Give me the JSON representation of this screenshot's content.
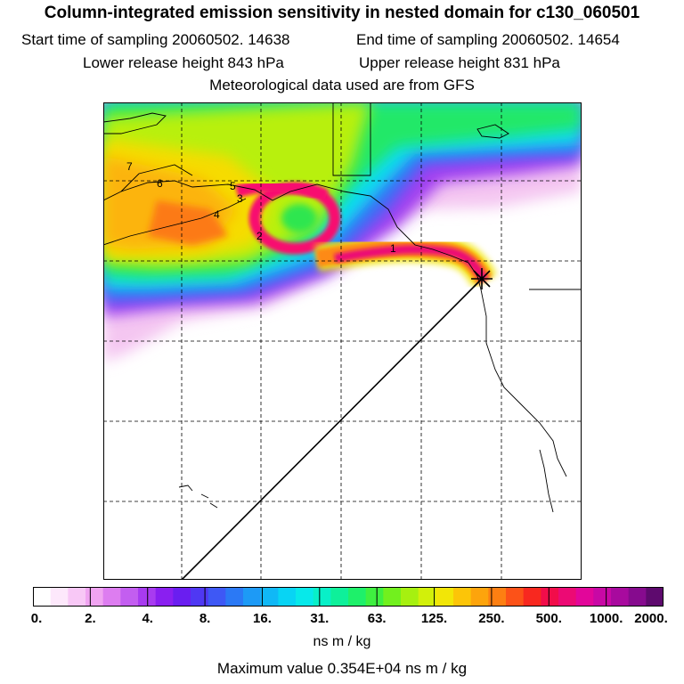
{
  "header": {
    "title": "Column-integrated emission sensitivity in nested domain for c130_060501",
    "start_time": "Start time of sampling 20060502. 14638",
    "end_time": "End time of sampling 20060502. 14654",
    "lower_height": "Lower release height  843 hPa",
    "upper_height": "Upper release height  831 hPa",
    "met_source": "Meteorological data used are from GFS"
  },
  "map": {
    "contour_labels": [
      "7",
      "6",
      "5",
      "3",
      "4",
      "2",
      "1"
    ],
    "release_marker": "release-point"
  },
  "colorbar": {
    "tick_labels": [
      "0.",
      "2.",
      "4.",
      "8.",
      "16.",
      "31.",
      "63.",
      "125.",
      "250.",
      "500.",
      "1000.",
      "2000."
    ],
    "colors": [
      "#ffffff",
      "#fde8fb",
      "#f8c8f6",
      "#f0a4f1",
      "#dd7df0",
      "#c35ef0",
      "#a83bf0",
      "#8a1ff0",
      "#6a1ef0",
      "#4f38f3",
      "#3e58f5",
      "#2b79f5",
      "#1d9af6",
      "#10b8f6",
      "#08d4f4",
      "#07e9ea",
      "#08f0c8",
      "#0ef09a",
      "#1ef06a",
      "#3ff040",
      "#72f01e",
      "#a6f010",
      "#d2f00a",
      "#f2e607",
      "#fcc508",
      "#fda40c",
      "#fd7f12",
      "#fc5218",
      "#f8281f",
      "#f20d4a",
      "#ec0a74",
      "#e2069a",
      "#c808a5",
      "#a80a9e",
      "#860b8e",
      "#5e0a6e"
    ],
    "units": "ns m / kg"
  },
  "footer": {
    "max_value": "Maximum value  0.354E+04 ns m / kg"
  }
}
